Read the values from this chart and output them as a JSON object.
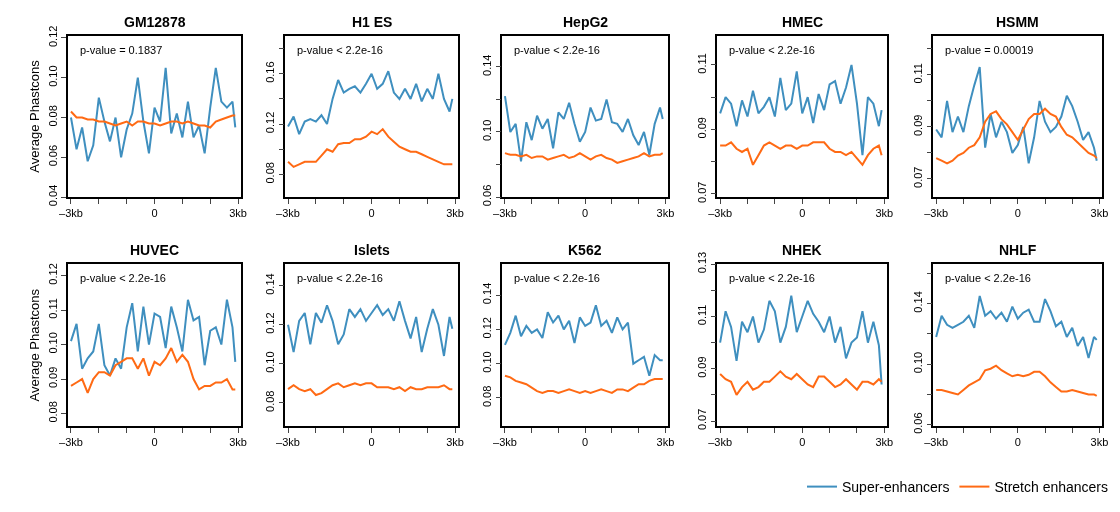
{
  "chart_data": [
    {
      "type": "line",
      "title": "GM12878",
      "ylabel": "Average Phastcons",
      "annotations": [
        "p-value = 0.1837"
      ],
      "legend": "bottom right",
      "xlim": [
        -3.1,
        3.1
      ],
      "ylim": [
        0.04,
        0.121
      ],
      "xticks": [
        {
          "value": -3,
          "label": "–3kb"
        },
        {
          "value": -2,
          "label": null
        },
        {
          "value": -1,
          "label": null
        },
        {
          "value": 0,
          "label": "0"
        },
        {
          "value": 1,
          "label": null
        },
        {
          "value": 2,
          "label": null
        },
        {
          "value": 3,
          "label": "3kb"
        }
      ],
      "yticks": [
        {
          "value": 0.04,
          "label": "0.04"
        },
        {
          "value": 0.06,
          "label": "0.06"
        },
        {
          "value": 0.08,
          "label": "0.08"
        },
        {
          "value": 0.1,
          "label": "0.10"
        },
        {
          "value": 0.12,
          "label": "0.12"
        }
      ],
      "x": [
        -3,
        -2.8,
        -2.6,
        -2.4,
        -2.2,
        -2,
        -1.8,
        -1.6,
        -1.4,
        -1.2,
        -1,
        -0.8,
        -0.6,
        -0.4,
        -0.2,
        0,
        0.2,
        0.4,
        0.6,
        0.8,
        1,
        1.2,
        1.4,
        1.6,
        1.8,
        2,
        2.2,
        2.4,
        2.6,
        2.8,
        2.9
      ],
      "series": [
        {
          "name": "Super-enhancers",
          "color": "#3f8fbf",
          "values": [
            0.08,
            0.064,
            0.075,
            0.058,
            0.066,
            0.09,
            0.078,
            0.068,
            0.08,
            0.06,
            0.074,
            0.082,
            0.1,
            0.078,
            0.062,
            0.085,
            0.078,
            0.105,
            0.072,
            0.082,
            0.07,
            0.088,
            0.07,
            0.076,
            0.062,
            0.085,
            0.105,
            0.088,
            0.085,
            0.088,
            0.075
          ]
        },
        {
          "name": "Stretch enhancers",
          "color": "#ff6a14",
          "values": [
            0.083,
            0.08,
            0.08,
            0.079,
            0.079,
            0.078,
            0.078,
            0.077,
            0.076,
            0.077,
            0.078,
            0.076,
            0.078,
            0.078,
            0.077,
            0.077,
            0.076,
            0.077,
            0.078,
            0.078,
            0.077,
            0.078,
            0.077,
            0.076,
            0.076,
            0.075,
            0.078,
            0.079,
            0.08,
            0.081,
            0.081
          ]
        }
      ]
    },
    {
      "type": "line",
      "title": "H1 ES",
      "annotations": [
        "p-value < 2.2e-16"
      ],
      "legend": "bottom right",
      "xlim": [
        -3.1,
        3.1
      ],
      "ylim": [
        0.062,
        0.19
      ],
      "xticks": [
        {
          "value": -3,
          "label": "–3kb"
        },
        {
          "value": -2,
          "label": null
        },
        {
          "value": -1,
          "label": null
        },
        {
          "value": 0,
          "label": "0"
        },
        {
          "value": 1,
          "label": null
        },
        {
          "value": 2,
          "label": null
        },
        {
          "value": 3,
          "label": "3kb"
        }
      ],
      "yticks": [
        {
          "value": 0.08,
          "label": "0.08"
        },
        {
          "value": 0.1,
          "label": null
        },
        {
          "value": 0.12,
          "label": "0.12"
        },
        {
          "value": 0.14,
          "label": null
        },
        {
          "value": 0.16,
          "label": "0.16"
        },
        {
          "value": 0.18,
          "label": null
        }
      ],
      "x": [
        -3,
        -2.8,
        -2.6,
        -2.4,
        -2.2,
        -2,
        -1.8,
        -1.6,
        -1.4,
        -1.2,
        -1,
        -0.8,
        -0.6,
        -0.4,
        -0.2,
        0,
        0.2,
        0.4,
        0.6,
        0.8,
        1,
        1.2,
        1.4,
        1.6,
        1.8,
        2,
        2.2,
        2.4,
        2.6,
        2.8,
        2.9
      ],
      "series": [
        {
          "name": "Super-enhancers",
          "color": "#3f8fbf",
          "values": [
            0.118,
            0.126,
            0.112,
            0.122,
            0.124,
            0.122,
            0.127,
            0.12,
            0.14,
            0.155,
            0.145,
            0.148,
            0.15,
            0.145,
            0.152,
            0.16,
            0.148,
            0.152,
            0.162,
            0.145,
            0.14,
            0.148,
            0.14,
            0.152,
            0.138,
            0.148,
            0.14,
            0.16,
            0.14,
            0.13,
            0.14
          ]
        },
        {
          "name": "Stretch enhancers",
          "color": "#ff6a14",
          "values": [
            0.09,
            0.086,
            0.088,
            0.09,
            0.09,
            0.09,
            0.095,
            0.1,
            0.098,
            0.104,
            0.105,
            0.105,
            0.108,
            0.108,
            0.11,
            0.114,
            0.112,
            0.116,
            0.11,
            0.106,
            0.102,
            0.1,
            0.098,
            0.098,
            0.096,
            0.094,
            0.092,
            0.09,
            0.088,
            0.088,
            0.088
          ]
        }
      ]
    },
    {
      "type": "line",
      "title": "HepG2",
      "annotations": [
        "p-value < 2.2e-16"
      ],
      "legend": "bottom right",
      "xlim": [
        -3.1,
        3.1
      ],
      "ylim": [
        0.06,
        0.159
      ],
      "xticks": [
        {
          "value": -3,
          "label": "–3kb"
        },
        {
          "value": -2,
          "label": null
        },
        {
          "value": -1,
          "label": null
        },
        {
          "value": 0,
          "label": "0"
        },
        {
          "value": 1,
          "label": null
        },
        {
          "value": 2,
          "label": null
        },
        {
          "value": 3,
          "label": "3kb"
        }
      ],
      "yticks": [
        {
          "value": 0.06,
          "label": "0.06"
        },
        {
          "value": 0.08,
          "label": null
        },
        {
          "value": 0.1,
          "label": "0.10"
        },
        {
          "value": 0.12,
          "label": null
        },
        {
          "value": 0.14,
          "label": "0.14"
        }
      ],
      "x": [
        -3,
        -2.8,
        -2.6,
        -2.4,
        -2.2,
        -2,
        -1.8,
        -1.6,
        -1.4,
        -1.2,
        -1,
        -0.8,
        -0.6,
        -0.4,
        -0.2,
        0,
        0.2,
        0.4,
        0.6,
        0.8,
        1,
        1.2,
        1.4,
        1.6,
        1.8,
        2,
        2.2,
        2.4,
        2.6,
        2.8,
        2.9
      ],
      "series": [
        {
          "name": "Super-enhancers",
          "color": "#3f8fbf",
          "values": [
            0.122,
            0.1,
            0.105,
            0.082,
            0.106,
            0.095,
            0.11,
            0.102,
            0.108,
            0.09,
            0.112,
            0.108,
            0.118,
            0.105,
            0.094,
            0.1,
            0.115,
            0.107,
            0.108,
            0.12,
            0.106,
            0.105,
            0.1,
            0.108,
            0.098,
            0.092,
            0.1,
            0.086,
            0.105,
            0.115,
            0.108
          ]
        },
        {
          "name": "Stretch enhancers",
          "color": "#ff6a14",
          "values": [
            0.087,
            0.086,
            0.086,
            0.085,
            0.086,
            0.084,
            0.085,
            0.085,
            0.083,
            0.084,
            0.085,
            0.086,
            0.084,
            0.085,
            0.087,
            0.085,
            0.083,
            0.085,
            0.086,
            0.084,
            0.083,
            0.081,
            0.082,
            0.083,
            0.084,
            0.085,
            0.087,
            0.085,
            0.086,
            0.086,
            0.087
          ]
        }
      ]
    },
    {
      "type": "line",
      "title": "HMEC",
      "annotations": [
        "p-value < 2.2e-16"
      ],
      "legend": "bottom right",
      "xlim": [
        -3.1,
        3.1
      ],
      "ylim": [
        0.069,
        0.119
      ],
      "xticks": [
        {
          "value": -3,
          "label": "–3kb"
        },
        {
          "value": -2,
          "label": null
        },
        {
          "value": -1,
          "label": null
        },
        {
          "value": 0,
          "label": "0"
        },
        {
          "value": 1,
          "label": null
        },
        {
          "value": 2,
          "label": null
        },
        {
          "value": 3,
          "label": "3kb"
        }
      ],
      "yticks": [
        {
          "value": 0.07,
          "label": "0.07"
        },
        {
          "value": 0.08,
          "label": null
        },
        {
          "value": 0.09,
          "label": "0.09"
        },
        {
          "value": 0.1,
          "label": null
        },
        {
          "value": 0.11,
          "label": "0.11"
        }
      ],
      "x": [
        -3,
        -2.8,
        -2.6,
        -2.4,
        -2.2,
        -2,
        -1.8,
        -1.6,
        -1.4,
        -1.2,
        -1,
        -0.8,
        -0.6,
        -0.4,
        -0.2,
        0,
        0.2,
        0.4,
        0.6,
        0.8,
        1,
        1.2,
        1.4,
        1.6,
        1.8,
        2,
        2.2,
        2.4,
        2.6,
        2.8,
        2.9
      ],
      "series": [
        {
          "name": "Super-enhancers",
          "color": "#3f8fbf",
          "values": [
            0.095,
            0.1,
            0.098,
            0.091,
            0.099,
            0.094,
            0.102,
            0.095,
            0.097,
            0.1,
            0.094,
            0.106,
            0.096,
            0.098,
            0.108,
            0.095,
            0.1,
            0.092,
            0.101,
            0.096,
            0.104,
            0.105,
            0.098,
            0.103,
            0.11,
            0.098,
            0.082,
            0.1,
            0.098,
            0.091,
            0.096
          ]
        },
        {
          "name": "Stretch enhancers",
          "color": "#ff6a14",
          "values": [
            0.085,
            0.085,
            0.086,
            0.084,
            0.083,
            0.084,
            0.079,
            0.082,
            0.085,
            0.086,
            0.085,
            0.084,
            0.085,
            0.085,
            0.084,
            0.085,
            0.085,
            0.086,
            0.086,
            0.086,
            0.084,
            0.083,
            0.083,
            0.082,
            0.083,
            0.081,
            0.079,
            0.082,
            0.084,
            0.085,
            0.082
          ]
        }
      ]
    },
    {
      "type": "line",
      "title": "HSMM",
      "annotations": [
        "p-value = 0.00019"
      ],
      "legend": "bottom right",
      "xlim": [
        -3.1,
        3.1
      ],
      "ylim": [
        0.063,
        0.125
      ],
      "xticks": [
        {
          "value": -3,
          "label": "–3kb"
        },
        {
          "value": -2,
          "label": null
        },
        {
          "value": -1,
          "label": null
        },
        {
          "value": 0,
          "label": "0"
        },
        {
          "value": 1,
          "label": null
        },
        {
          "value": 2,
          "label": null
        },
        {
          "value": 3,
          "label": "3kb"
        }
      ],
      "yticks": [
        {
          "value": 0.07,
          "label": "0.07"
        },
        {
          "value": 0.08,
          "label": null
        },
        {
          "value": 0.09,
          "label": "0.09"
        },
        {
          "value": 0.1,
          "label": null
        },
        {
          "value": 0.11,
          "label": "0.11"
        },
        {
          "value": 0.12,
          "label": null
        }
      ],
      "x": [
        -3,
        -2.8,
        -2.6,
        -2.4,
        -2.2,
        -2,
        -1.8,
        -1.6,
        -1.4,
        -1.2,
        -1,
        -0.8,
        -0.6,
        -0.4,
        -0.2,
        0,
        0.2,
        0.4,
        0.6,
        0.8,
        1,
        1.2,
        1.4,
        1.6,
        1.8,
        2,
        2.2,
        2.4,
        2.6,
        2.8,
        2.9
      ],
      "series": [
        {
          "name": "Super-enhancers",
          "color": "#3f8fbf",
          "values": [
            0.089,
            0.086,
            0.1,
            0.088,
            0.094,
            0.088,
            0.098,
            0.106,
            0.113,
            0.082,
            0.095,
            0.086,
            0.092,
            0.088,
            0.08,
            0.083,
            0.09,
            0.076,
            0.086,
            0.1,
            0.092,
            0.088,
            0.09,
            0.094,
            0.102,
            0.098,
            0.092,
            0.085,
            0.088,
            0.082,
            0.077
          ]
        },
        {
          "name": "Stretch enhancers",
          "color": "#ff6a14",
          "values": [
            0.078,
            0.077,
            0.076,
            0.077,
            0.079,
            0.08,
            0.082,
            0.083,
            0.086,
            0.092,
            0.095,
            0.096,
            0.093,
            0.091,
            0.088,
            0.085,
            0.089,
            0.093,
            0.095,
            0.095,
            0.097,
            0.095,
            0.094,
            0.09,
            0.087,
            0.086,
            0.084,
            0.082,
            0.08,
            0.079,
            0.078
          ]
        }
      ]
    },
    {
      "type": "line",
      "title": "HUVEC",
      "ylabel": "Average Phastcons",
      "annotations": [
        "p-value < 2.2e-16"
      ],
      "legend": "bottom right",
      "xlim": [
        -3.1,
        3.1
      ],
      "ylim": [
        0.0763,
        0.1233
      ],
      "xticks": [
        {
          "value": -3,
          "label": "–3kb"
        },
        {
          "value": -2,
          "label": null
        },
        {
          "value": -1,
          "label": null
        },
        {
          "value": 0,
          "label": "0"
        },
        {
          "value": 1,
          "label": null
        },
        {
          "value": 2,
          "label": null
        },
        {
          "value": 3,
          "label": "3kb"
        }
      ],
      "yticks": [
        {
          "value": 0.08,
          "label": "0.08"
        },
        {
          "value": 0.09,
          "label": "0.09"
        },
        {
          "value": 0.1,
          "label": "0.10"
        },
        {
          "value": 0.11,
          "label": "0.11"
        },
        {
          "value": 0.12,
          "label": "0.12"
        }
      ],
      "x": [
        -3,
        -2.8,
        -2.6,
        -2.4,
        -2.2,
        -2,
        -1.8,
        -1.6,
        -1.4,
        -1.2,
        -1,
        -0.8,
        -0.6,
        -0.4,
        -0.2,
        0,
        0.2,
        0.4,
        0.6,
        0.8,
        1,
        1.2,
        1.4,
        1.6,
        1.8,
        2,
        2.2,
        2.4,
        2.6,
        2.8,
        2.9
      ],
      "series": [
        {
          "name": "Super-enhancers",
          "color": "#3f8fbf",
          "values": [
            0.101,
            0.106,
            0.093,
            0.096,
            0.098,
            0.106,
            0.094,
            0.091,
            0.096,
            0.093,
            0.105,
            0.112,
            0.098,
            0.111,
            0.1,
            0.109,
            0.108,
            0.099,
            0.111,
            0.105,
            0.098,
            0.113,
            0.107,
            0.108,
            0.094,
            0.104,
            0.105,
            0.1,
            0.113,
            0.105,
            0.095
          ]
        },
        {
          "name": "Stretch enhancers",
          "color": "#ff6a14",
          "values": [
            0.088,
            0.089,
            0.09,
            0.086,
            0.09,
            0.092,
            0.092,
            0.091,
            0.094,
            0.095,
            0.096,
            0.096,
            0.093,
            0.096,
            0.091,
            0.095,
            0.094,
            0.096,
            0.099,
            0.095,
            0.097,
            0.095,
            0.09,
            0.087,
            0.088,
            0.088,
            0.089,
            0.089,
            0.09,
            0.087,
            0.087
          ]
        }
      ]
    },
    {
      "type": "line",
      "title": "Islets",
      "annotations": [
        "p-value < 2.2e-16"
      ],
      "legend": "bottom right",
      "xlim": [
        -3.1,
        3.1
      ],
      "ylim": [
        0.068,
        0.151
      ],
      "xticks": [
        {
          "value": -3,
          "label": "–3kb"
        },
        {
          "value": -2,
          "label": null
        },
        {
          "value": -1,
          "label": null
        },
        {
          "value": 0,
          "label": "0"
        },
        {
          "value": 1,
          "label": null
        },
        {
          "value": 2,
          "label": null
        },
        {
          "value": 3,
          "label": "3kb"
        }
      ],
      "yticks": [
        {
          "value": 0.08,
          "label": "0.08"
        },
        {
          "value": 0.1,
          "label": "0.10"
        },
        {
          "value": 0.12,
          "label": "0.12"
        },
        {
          "value": 0.14,
          "label": "0.14"
        }
      ],
      "x": [
        -3,
        -2.8,
        -2.6,
        -2.4,
        -2.2,
        -2,
        -1.8,
        -1.6,
        -1.4,
        -1.2,
        -1,
        -0.8,
        -0.6,
        -0.4,
        -0.2,
        0,
        0.2,
        0.4,
        0.6,
        0.8,
        1,
        1.2,
        1.4,
        1.6,
        1.8,
        2,
        2.2,
        2.4,
        2.6,
        2.8,
        2.9
      ],
      "series": [
        {
          "name": "Super-enhancers",
          "color": "#3f8fbf",
          "values": [
            0.12,
            0.106,
            0.122,
            0.126,
            0.11,
            0.126,
            0.121,
            0.13,
            0.122,
            0.11,
            0.115,
            0.128,
            0.124,
            0.128,
            0.122,
            0.126,
            0.13,
            0.125,
            0.128,
            0.122,
            0.132,
            0.122,
            0.113,
            0.124,
            0.106,
            0.118,
            0.128,
            0.12,
            0.104,
            0.124,
            0.118
          ]
        },
        {
          "name": "Stretch enhancers",
          "color": "#ff6a14",
          "values": [
            0.087,
            0.089,
            0.087,
            0.086,
            0.087,
            0.084,
            0.085,
            0.087,
            0.089,
            0.09,
            0.088,
            0.089,
            0.09,
            0.089,
            0.09,
            0.09,
            0.088,
            0.088,
            0.088,
            0.087,
            0.088,
            0.086,
            0.088,
            0.087,
            0.087,
            0.088,
            0.088,
            0.088,
            0.089,
            0.087,
            0.087
          ]
        }
      ]
    },
    {
      "type": "line",
      "title": "K562",
      "annotations": [
        "p-value < 2.2e-16"
      ],
      "legend": "bottom right",
      "xlim": [
        -3.1,
        3.1
      ],
      "ylim": [
        0.0635,
        0.158
      ],
      "xticks": [
        {
          "value": -3,
          "label": "–3kb"
        },
        {
          "value": -2,
          "label": null
        },
        {
          "value": -1,
          "label": null
        },
        {
          "value": 0,
          "label": "0"
        },
        {
          "value": 1,
          "label": null
        },
        {
          "value": 2,
          "label": null
        },
        {
          "value": 3,
          "label": "3kb"
        }
      ],
      "yticks": [
        {
          "value": 0.08,
          "label": "0.08"
        },
        {
          "value": 0.1,
          "label": "0.10"
        },
        {
          "value": 0.12,
          "label": "0.12"
        },
        {
          "value": 0.14,
          "label": "0.14"
        }
      ],
      "x": [
        -3,
        -2.8,
        -2.6,
        -2.4,
        -2.2,
        -2,
        -1.8,
        -1.6,
        -1.4,
        -1.2,
        -1,
        -0.8,
        -0.6,
        -0.4,
        -0.2,
        0,
        0.2,
        0.4,
        0.6,
        0.8,
        1,
        1.2,
        1.4,
        1.6,
        1.8,
        2,
        2.2,
        2.4,
        2.6,
        2.8,
        2.9
      ],
      "series": [
        {
          "name": "Super-enhancers",
          "color": "#3f8fbf",
          "values": [
            0.111,
            0.118,
            0.128,
            0.116,
            0.122,
            0.118,
            0.12,
            0.115,
            0.13,
            0.124,
            0.128,
            0.12,
            0.125,
            0.112,
            0.127,
            0.122,
            0.124,
            0.134,
            0.122,
            0.125,
            0.118,
            0.127,
            0.12,
            0.124,
            0.1,
            0.102,
            0.104,
            0.093,
            0.105,
            0.102,
            0.102
          ]
        },
        {
          "name": "Stretch enhancers",
          "color": "#ff6a14",
          "values": [
            0.093,
            0.092,
            0.09,
            0.089,
            0.088,
            0.086,
            0.084,
            0.083,
            0.084,
            0.084,
            0.083,
            0.084,
            0.085,
            0.084,
            0.083,
            0.084,
            0.083,
            0.084,
            0.085,
            0.084,
            0.083,
            0.085,
            0.085,
            0.084,
            0.086,
            0.088,
            0.088,
            0.09,
            0.091,
            0.091,
            0.091
          ]
        }
      ]
    },
    {
      "type": "line",
      "title": "NHEK",
      "annotations": [
        "p-value < 2.2e-16"
      ],
      "legend": "bottom right",
      "xlim": [
        -3.1,
        3.1
      ],
      "ylim": [
        0.068,
        0.13
      ],
      "xticks": [
        {
          "value": -3,
          "label": "–3kb"
        },
        {
          "value": -2,
          "label": null
        },
        {
          "value": -1,
          "label": null
        },
        {
          "value": 0,
          "label": "0"
        },
        {
          "value": 1,
          "label": null
        },
        {
          "value": 2,
          "label": null
        },
        {
          "value": 3,
          "label": "3kb"
        }
      ],
      "yticks": [
        {
          "value": 0.07,
          "label": "0.07"
        },
        {
          "value": 0.08,
          "label": null
        },
        {
          "value": 0.09,
          "label": "0.09"
        },
        {
          "value": 0.1,
          "label": null
        },
        {
          "value": 0.11,
          "label": "0.11"
        },
        {
          "value": 0.12,
          "label": null
        },
        {
          "value": 0.13,
          "label": "0.13"
        }
      ],
      "x": [
        -3,
        -2.8,
        -2.6,
        -2.4,
        -2.2,
        -2,
        -1.8,
        -1.6,
        -1.4,
        -1.2,
        -1,
        -0.8,
        -0.6,
        -0.4,
        -0.2,
        0,
        0.2,
        0.4,
        0.6,
        0.8,
        1,
        1.2,
        1.4,
        1.6,
        1.8,
        2,
        2.2,
        2.4,
        2.6,
        2.8,
        2.9
      ],
      "series": [
        {
          "name": "Super-enhancers",
          "color": "#3f8fbf",
          "values": [
            0.1,
            0.112,
            0.106,
            0.093,
            0.108,
            0.104,
            0.11,
            0.1,
            0.105,
            0.116,
            0.112,
            0.1,
            0.106,
            0.118,
            0.104,
            0.11,
            0.116,
            0.111,
            0.108,
            0.104,
            0.11,
            0.1,
            0.106,
            0.094,
            0.1,
            0.102,
            0.112,
            0.1,
            0.108,
            0.099,
            0.084
          ]
        },
        {
          "name": "Stretch enhancers",
          "color": "#ff6a14",
          "values": [
            0.088,
            0.086,
            0.085,
            0.08,
            0.083,
            0.085,
            0.082,
            0.083,
            0.085,
            0.085,
            0.087,
            0.089,
            0.087,
            0.086,
            0.088,
            0.086,
            0.084,
            0.083,
            0.087,
            0.087,
            0.085,
            0.083,
            0.084,
            0.086,
            0.084,
            0.082,
            0.085,
            0.085,
            0.084,
            0.086,
            0.085
          ]
        }
      ]
    },
    {
      "type": "line",
      "title": "NHLF",
      "annotations": [
        "p-value < 2.2e-16"
      ],
      "legend": "bottom right",
      "xlim": [
        -3.1,
        3.1
      ],
      "ylim": [
        0.059,
        0.166
      ],
      "xticks": [
        {
          "value": -3,
          "label": "–3kb"
        },
        {
          "value": -2,
          "label": null
        },
        {
          "value": -1,
          "label": null
        },
        {
          "value": 0,
          "label": "0"
        },
        {
          "value": 1,
          "label": null
        },
        {
          "value": 2,
          "label": null
        },
        {
          "value": 3,
          "label": "3kb"
        }
      ],
      "yticks": [
        {
          "value": 0.06,
          "label": "0.06"
        },
        {
          "value": 0.08,
          "label": null
        },
        {
          "value": 0.1,
          "label": "0.10"
        },
        {
          "value": 0.12,
          "label": null
        },
        {
          "value": 0.14,
          "label": "0.14"
        },
        {
          "value": 0.16,
          "label": null
        }
      ],
      "x": [
        -3,
        -2.8,
        -2.6,
        -2.4,
        -2.2,
        -2,
        -1.8,
        -1.6,
        -1.4,
        -1.2,
        -1,
        -0.8,
        -0.6,
        -0.4,
        -0.2,
        0,
        0.2,
        0.4,
        0.6,
        0.8,
        1,
        1.2,
        1.4,
        1.6,
        1.8,
        2,
        2.2,
        2.4,
        2.6,
        2.8,
        2.9
      ],
      "series": [
        {
          "name": "Super-enhancers",
          "color": "#3f8fbf",
          "values": [
            0.118,
            0.132,
            0.126,
            0.124,
            0.126,
            0.128,
            0.132,
            0.124,
            0.145,
            0.132,
            0.135,
            0.13,
            0.134,
            0.128,
            0.138,
            0.13,
            0.134,
            0.136,
            0.128,
            0.128,
            0.143,
            0.135,
            0.125,
            0.128,
            0.118,
            0.124,
            0.112,
            0.118,
            0.104,
            0.118,
            0.116
          ]
        },
        {
          "name": "Stretch enhancers",
          "color": "#ff6a14",
          "values": [
            0.083,
            0.083,
            0.082,
            0.081,
            0.08,
            0.083,
            0.086,
            0.088,
            0.09,
            0.096,
            0.097,
            0.099,
            0.096,
            0.094,
            0.092,
            0.093,
            0.092,
            0.093,
            0.095,
            0.095,
            0.092,
            0.088,
            0.085,
            0.082,
            0.082,
            0.083,
            0.082,
            0.081,
            0.08,
            0.08,
            0.079
          ]
        }
      ]
    }
  ]
}
